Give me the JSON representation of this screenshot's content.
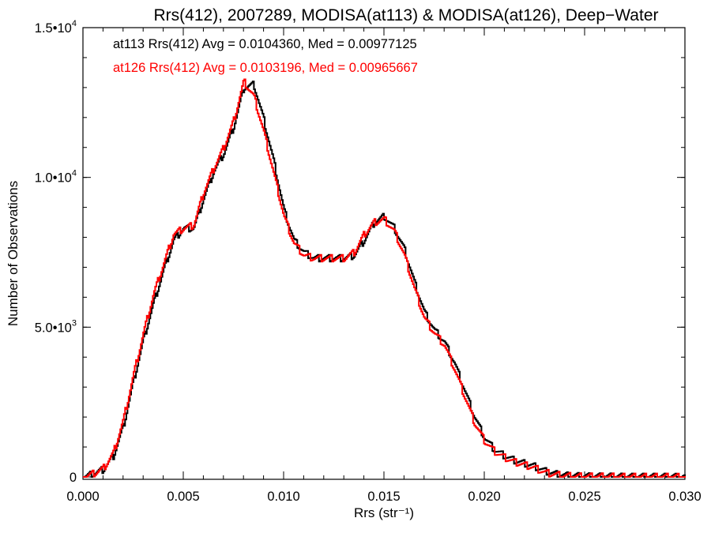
{
  "chart_data": {
    "type": "line",
    "title": "Rrs(412), 2007289, MODISA(at113) & MODISA(at126), Deep−Water",
    "xlabel": "Rrs (str⁻¹)",
    "ylabel": "Number of Observations",
    "xlim": [
      0.0,
      0.03
    ],
    "ylim": [
      0,
      15000
    ],
    "xticks": [
      {
        "value": 0.0,
        "label": "0.000"
      },
      {
        "value": 0.005,
        "label": "0.005"
      },
      {
        "value": 0.01,
        "label": "0.010"
      },
      {
        "value": 0.015,
        "label": "0.015"
      },
      {
        "value": 0.02,
        "label": "0.020"
      },
      {
        "value": 0.025,
        "label": "0.025"
      },
      {
        "value": 0.03,
        "label": "0.030"
      }
    ],
    "yticks": [
      {
        "value": 0,
        "mantissa": "0",
        "exponent": ""
      },
      {
        "value": 5000,
        "mantissa": "5.0•10",
        "exponent": "3"
      },
      {
        "value": 10000,
        "mantissa": "1.0•10",
        "exponent": "4"
      },
      {
        "value": 15000,
        "mantissa": "1.5•10",
        "exponent": "4"
      }
    ],
    "grid": false,
    "legend_placement": "top-left",
    "annotations": [
      {
        "text": "at113 Rrs(412) Avg = 0.0104360, Med = 0.00977125",
        "color": "#000000"
      },
      {
        "text": "at126 Rrs(412) Avg = 0.0103196, Med = 0.00965667",
        "color": "#ff0000"
      }
    ],
    "x": [
      0.0,
      0.0005,
      0.001,
      0.0015,
      0.002,
      0.0025,
      0.003,
      0.0035,
      0.004,
      0.0045,
      0.005,
      0.0055,
      0.006,
      0.0065,
      0.007,
      0.0075,
      0.008,
      0.0085,
      0.009,
      0.0095,
      0.01,
      0.0105,
      0.011,
      0.0115,
      0.012,
      0.0125,
      0.013,
      0.0135,
      0.014,
      0.0145,
      0.015,
      0.0155,
      0.016,
      0.0165,
      0.017,
      0.0175,
      0.018,
      0.0185,
      0.019,
      0.0195,
      0.02,
      0.0205,
      0.021,
      0.0215,
      0.022,
      0.0225,
      0.023,
      0.0235,
      0.024,
      0.0245,
      0.025,
      0.026,
      0.027,
      0.028,
      0.029,
      0.03
    ],
    "series": [
      {
        "color": "#000000",
        "values": [
          0,
          100,
          250,
          700,
          1700,
          3200,
          4600,
          5800,
          6900,
          7900,
          8300,
          8300,
          9300,
          10200,
          10800,
          11700,
          13000,
          13100,
          11900,
          10500,
          8900,
          7900,
          7500,
          7300,
          7300,
          7300,
          7300,
          7400,
          7900,
          8500,
          8700,
          8300,
          7600,
          6500,
          5500,
          4900,
          4500,
          3800,
          2900,
          2000,
          1300,
          900,
          700,
          550,
          450,
          350,
          200,
          100,
          50,
          30,
          20,
          10,
          5,
          5,
          5,
          0
        ]
      },
      {
        "color": "#ff0000",
        "values": [
          0,
          110,
          280,
          800,
          1900,
          3400,
          4800,
          6100,
          7100,
          8100,
          8300,
          8400,
          9500,
          10300,
          11000,
          11900,
          13200,
          12700,
          11500,
          10100,
          8700,
          7800,
          7400,
          7300,
          7300,
          7300,
          7300,
          7500,
          8100,
          8500,
          8600,
          8200,
          7400,
          6300,
          5300,
          4800,
          4400,
          3600,
          2700,
          1800,
          1200,
          850,
          650,
          500,
          400,
          300,
          150,
          80,
          40,
          20,
          15,
          10,
          5,
          5,
          5,
          0
        ]
      }
    ]
  }
}
